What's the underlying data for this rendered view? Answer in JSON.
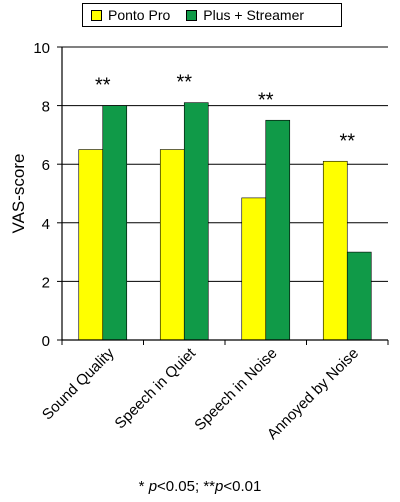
{
  "colors": {
    "Ponto Pro": "#ffff00",
    "Plus + Streamer": "#109a48"
  },
  "footnote": {
    "part1": "* ",
    "p1": "p",
    "part2": "<0.05; **",
    "p2": "p",
    "part3": "<0.01"
  },
  "chart_data": {
    "type": "bar",
    "ylabel": "VAS-score",
    "ylim": [
      0,
      10
    ],
    "yticks": [
      "0",
      "2",
      "4",
      "6",
      "8",
      "10"
    ],
    "grid": true,
    "legend_position": "top",
    "categories": [
      "Sound Quality",
      "Speech in Quiet",
      "Speech in Noise",
      "Annoyed by Noise"
    ],
    "series": [
      {
        "name": "Ponto Pro",
        "values": [
          6.5,
          6.5,
          4.85,
          6.1
        ]
      },
      {
        "name": "Plus + Streamer",
        "values": [
          8.0,
          8.1,
          7.5,
          3.0
        ]
      }
    ],
    "annotations": [
      "**",
      "**",
      "**",
      "**"
    ]
  }
}
